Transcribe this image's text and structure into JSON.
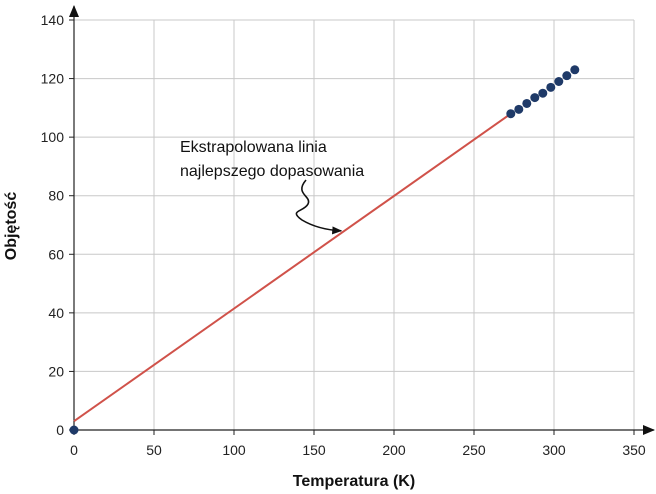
{
  "chart_data": {
    "type": "scatter",
    "title": "",
    "xlabel": "Temperatura (K)",
    "ylabel": "Objętość",
    "xlim": [
      0,
      350
    ],
    "ylim": [
      0,
      140
    ],
    "xticks": [
      0,
      50,
      100,
      150,
      200,
      250,
      300,
      350
    ],
    "yticks": [
      0,
      20,
      40,
      60,
      80,
      100,
      120,
      140
    ],
    "grid": true,
    "points": [
      {
        "x": 0,
        "y": 0
      },
      {
        "x": 273,
        "y": 108
      },
      {
        "x": 278,
        "y": 109.5
      },
      {
        "x": 283,
        "y": 111.5
      },
      {
        "x": 288,
        "y": 113.5
      },
      {
        "x": 293,
        "y": 115
      },
      {
        "x": 298,
        "y": 117
      },
      {
        "x": 303,
        "y": 119
      },
      {
        "x": 308,
        "y": 121
      },
      {
        "x": 313,
        "y": 123
      }
    ],
    "fit_line": {
      "x": [
        0,
        273
      ],
      "y": [
        3,
        108
      ]
    },
    "colors": {
      "points": "#1f3a68",
      "fit_line": "#d0524a",
      "grid": "#c8c8c8",
      "axis": "#222222"
    },
    "annotation": {
      "lines": [
        "Ekstrapolowana linia",
        "najlepszego dopasowania"
      ],
      "points_to": {
        "x": 167,
        "y": 68
      }
    }
  }
}
